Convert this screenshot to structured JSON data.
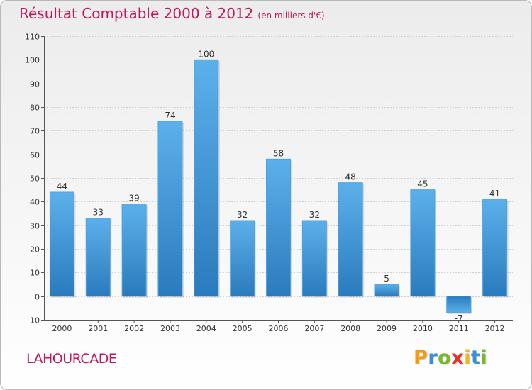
{
  "header": {
    "title": "Résultat Comptable 2000 à 2012",
    "subtitle": "(en milliers d'€)"
  },
  "commune": "LAHOURCADE",
  "brand": {
    "letters": [
      "P",
      "r",
      "o",
      "x",
      "i",
      "t",
      "i"
    ],
    "colors": [
      "#f39c12",
      "#3a8fd8",
      "#79b928",
      "#e8302b",
      "#f3b71a",
      "#3a8fd8",
      "#79b928"
    ]
  },
  "chart_data": {
    "type": "bar",
    "title": "Résultat Comptable 2000 à 2012",
    "subtitle": "(en milliers d'€)",
    "xlabel": "",
    "ylabel": "",
    "categories": [
      "2000",
      "2001",
      "2002",
      "2003",
      "2004",
      "2005",
      "2006",
      "2007",
      "2008",
      "2009",
      "2010",
      "2011",
      "2012"
    ],
    "values": [
      44,
      33,
      39,
      74,
      100,
      32,
      58,
      32,
      48,
      5,
      45,
      -7,
      41
    ],
    "ylim": [
      -10,
      110
    ],
    "yticks": [
      -10,
      0,
      10,
      20,
      30,
      40,
      50,
      60,
      70,
      80,
      90,
      100,
      110
    ],
    "grid": true,
    "bar_color": "#3d97dc"
  }
}
